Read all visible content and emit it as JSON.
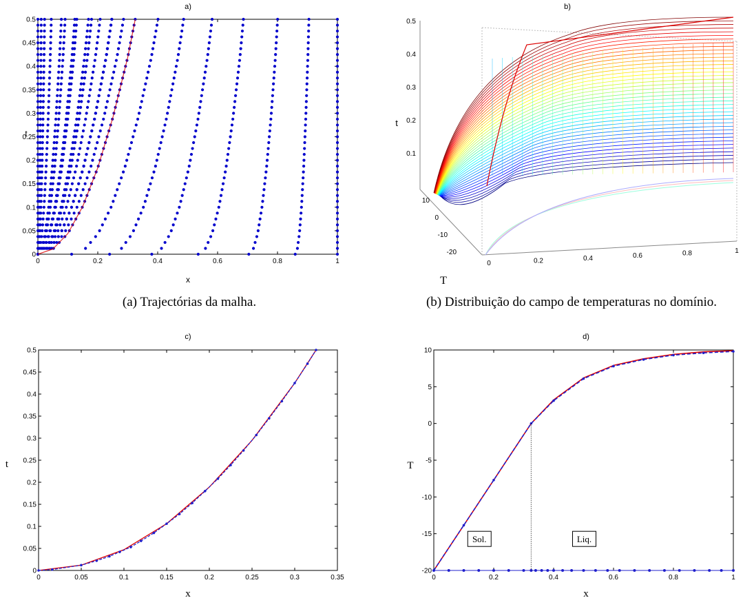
{
  "captions": {
    "a": "(a) Trajectórias da malha.",
    "b": "(b) Distribuição do campo de temperaturas no domínio."
  },
  "chart_data": [
    {
      "id": "a",
      "type": "scatter",
      "title": "a)",
      "xlabel": "x",
      "ylabel": "t",
      "xlim": [
        0,
        1
      ],
      "ylim": [
        0,
        0.5
      ],
      "xticks": [
        "0",
        "0.2",
        "0.4",
        "0.6",
        "0.8",
        "1"
      ],
      "yticks": [
        "0",
        "0.05",
        "0.1",
        "0.15",
        "0.2",
        "0.25",
        "0.3",
        "0.35",
        "0.4",
        "0.45",
        "0.5"
      ],
      "front_curve": {
        "x": [
          0,
          0.05,
          0.1,
          0.15,
          0.2,
          0.25,
          0.3,
          0.325
        ],
        "t": [
          0,
          0.011,
          0.044,
          0.102,
          0.184,
          0.29,
          0.419,
          0.5
        ]
      },
      "mesh_nodes_x_at_t0": [
        0,
        0.01,
        0.02,
        0.04,
        0.07,
        0.11,
        0.16,
        0.22,
        0.29,
        0.37,
        0.46,
        0.56,
        0.67,
        0.79,
        0.9,
        1.0
      ],
      "point_color": "#0000cc",
      "front_color": "#dd0000"
    },
    {
      "id": "b",
      "type": "surface",
      "title": "b)",
      "xlabel": "",
      "ylabel": "t",
      "zlabel": "T",
      "x_ticks": [
        "0",
        "0.2",
        "0.4",
        "0.6",
        "0.8",
        "1"
      ],
      "t_ticks": [
        "0.1",
        "0.2",
        "0.3",
        "0.4",
        "0.5"
      ],
      "T_ticks": [
        "10",
        "0",
        "-10",
        "-20"
      ],
      "xlim": [
        0,
        1
      ],
      "tlim": [
        0,
        0.5
      ],
      "Tlim": [
        -20,
        10
      ]
    },
    {
      "id": "c",
      "type": "line",
      "title": "c)",
      "xlabel": "x",
      "ylabel": "t",
      "xlim": [
        0,
        0.35
      ],
      "ylim": [
        0,
        0.5
      ],
      "xticks": [
        "0",
        "0.05",
        "0.1",
        "0.15",
        "0.2",
        "0.25",
        "0.3",
        "0.35"
      ],
      "yticks": [
        "0",
        "0.05",
        "0.1",
        "0.15",
        "0.2",
        "0.25",
        "0.3",
        "0.35",
        "0.4",
        "0.45",
        "0.5"
      ],
      "series": [
        {
          "color": "#dd0000",
          "x": [
            0,
            0.05,
            0.1,
            0.15,
            0.2,
            0.25,
            0.3,
            0.325
          ],
          "t": [
            0,
            0.012,
            0.047,
            0.106,
            0.189,
            0.295,
            0.425,
            0.5
          ]
        },
        {
          "color": "#2020cc",
          "marker": "dot",
          "x": [
            0,
            0.016,
            0.05,
            0.068,
            0.083,
            0.095,
            0.108,
            0.12,
            0.135,
            0.15,
            0.165,
            0.18,
            0.195,
            0.21,
            0.225,
            0.24,
            0.255,
            0.27,
            0.285,
            0.3,
            0.315,
            0.325
          ],
          "t": [
            0,
            0.002,
            0.012,
            0.022,
            0.032,
            0.042,
            0.053,
            0.067,
            0.085,
            0.106,
            0.128,
            0.153,
            0.18,
            0.208,
            0.239,
            0.272,
            0.307,
            0.345,
            0.384,
            0.425,
            0.469,
            0.5
          ]
        }
      ]
    },
    {
      "id": "d",
      "type": "line",
      "title": "d)",
      "xlabel": "x",
      "ylabel": "T",
      "xlim": [
        0,
        1
      ],
      "ylim": [
        -20,
        10
      ],
      "xticks": [
        "0",
        "0.2",
        "0.4",
        "0.6",
        "0.8",
        "1"
      ],
      "yticks": [
        "10",
        "5",
        "0",
        "-5",
        "-10",
        "-15",
        "-20"
      ],
      "series": [
        {
          "color": "#dd0000",
          "x": [
            0,
            0.1,
            0.2,
            0.325,
            0.4,
            0.5,
            0.6,
            0.7,
            0.8,
            0.9,
            1.0
          ],
          "T": [
            -20,
            -13.85,
            -7.7,
            0,
            3.2,
            6.2,
            7.9,
            8.8,
            9.4,
            9.75,
            9.9
          ]
        },
        {
          "color": "#2020cc",
          "marker": "dot",
          "x": [
            0,
            0.1,
            0.2,
            0.325,
            0.4,
            0.5,
            0.6,
            0.7,
            0.8,
            0.9,
            1.0
          ],
          "T": [
            -20,
            -13.85,
            -7.7,
            0,
            3.1,
            6.1,
            7.8,
            8.7,
            9.3,
            9.6,
            9.8
          ]
        }
      ],
      "bottom_markers": {
        "T": -20,
        "x": [
          0,
          0.05,
          0.1,
          0.15,
          0.2,
          0.25,
          0.3,
          0.325,
          0.34,
          0.36,
          0.38,
          0.4,
          0.43,
          0.46,
          0.5,
          0.54,
          0.58,
          0.62,
          0.67,
          0.72,
          0.77,
          0.82,
          0.87,
          0.92,
          0.96,
          1.0
        ]
      },
      "interface_x": 0.325,
      "annotations": [
        {
          "text": "Sol.",
          "x": 0.15,
          "T": -15.8
        },
        {
          "text": "Liq.",
          "x": 0.5,
          "T": -15.8
        }
      ]
    }
  ]
}
